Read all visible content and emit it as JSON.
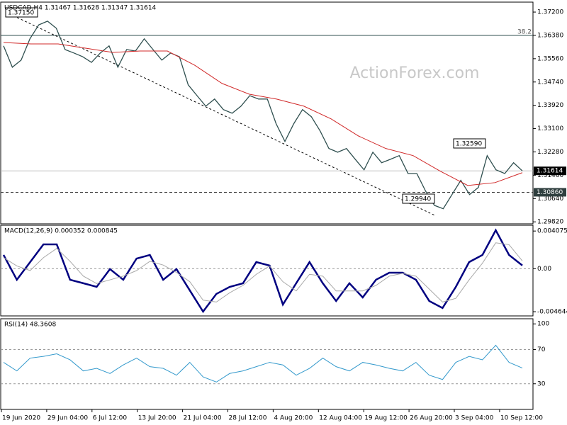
{
  "chart_data": [
    {
      "type": "line",
      "title": "USDCAD,H4 1.31467 1.31628 1.31347 1.31614",
      "watermark": "ActionForex.com",
      "series": [
        {
          "color": "#2f4f4f",
          "values": [
            1.3601,
            1.3526,
            1.3551,
            1.3626,
            1.3675,
            1.3688,
            1.3663,
            1.3588,
            1.3576,
            1.3563,
            1.3543,
            1.3576,
            1.3601,
            1.3526,
            1.3588,
            1.3583,
            1.3626,
            1.3588,
            1.3551,
            1.3576,
            1.3563,
            1.3464,
            1.3426,
            1.3389,
            1.3414,
            1.3377,
            1.3364,
            1.3389,
            1.3426,
            1.3414,
            1.3414,
            1.3327,
            1.3265,
            1.3327,
            1.3377,
            1.3352,
            1.3302,
            1.324,
            1.3227,
            1.324,
            1.3202,
            1.3165,
            1.3227,
            1.319,
            1.3202,
            1.3215,
            1.3152,
            1.3152,
            1.309,
            1.304,
            1.3028,
            1.3078,
            1.3128,
            1.3078,
            1.3103,
            1.3215,
            1.3165,
            1.3152,
            1.319,
            1.31614
          ]
        },
        {
          "color": "#d02828",
          "values": [
            1.3613,
            1.3608,
            1.3608,
            1.3593,
            1.3578,
            1.3583,
            1.3583,
            1.3533,
            1.3469,
            1.3431,
            1.3414,
            1.3389,
            1.3344,
            1.3284,
            1.324,
            1.3215,
            1.316,
            1.311,
            1.312,
            1.3155
          ]
        }
      ],
      "ylim": [
        1.2975,
        1.3755
      ],
      "yticks": [
        {
          "value": 1.372,
          "label": "1.37200"
        },
        {
          "value": 1.3638,
          "label": "1.36380"
        },
        {
          "value": 1.3556,
          "label": "1.35560"
        },
        {
          "value": 1.3474,
          "label": "1.34740"
        },
        {
          "value": 1.3392,
          "label": "1.33920"
        },
        {
          "value": 1.331,
          "label": "1.33100"
        },
        {
          "value": 1.3228,
          "label": "1.32280"
        },
        {
          "value": 1.3146,
          "label": "1.31460"
        },
        {
          "value": 1.3064,
          "label": "1.30640"
        },
        {
          "value": 1.2982,
          "label": "1.29820"
        }
      ],
      "highs_lows": [
        {
          "value": 1.3715,
          "label": "1.37150"
        },
        {
          "value": 1.3259,
          "label": "1.32590"
        },
        {
          "value": 1.2994,
          "label": "1.29940"
        }
      ],
      "current": {
        "value": 1.31614,
        "label": "1.31614"
      },
      "level": {
        "value": 1.3086,
        "label": "1.30860"
      },
      "fib_level": {
        "price": 1.3638,
        "ratio": 38.2
      },
      "trendline": {
        "from": 1.372,
        "to": 1.3003
      },
      "x_labels": [
        "19 Jun 2020",
        "29 Jun 04:00",
        "6 Jul 12:00",
        "13 Jul 20:00",
        "21 Jul 04:00",
        "28 Jul 12:00",
        "4 Aug 20:00",
        "12 Aug 04:00",
        "19 Aug 12:00",
        "26 Aug 20:00",
        "3 Sep 04:00",
        "10 Sep 12:00"
      ]
    },
    {
      "type": "line",
      "title": "MACD(12,26,9) 0.000352 0.000845",
      "series": [
        {
          "color": "#000080",
          "values": [
            0.00149,
            -0.00119,
            0.00072,
            0.00263,
            0.00263,
            -0.00119,
            -0.00157,
            -0.00196,
            -4e-05,
            -0.00119,
            0.0011,
            0.00149,
            -0.00119,
            -4e-05,
            -0.00234,
            -0.00463,
            -0.00272,
            -0.00196,
            -0.00157,
            0.00072,
            0.00034,
            -0.00387,
            -0.00157,
            0.00072,
            -0.00157,
            -0.00349,
            -0.00157,
            -0.0031,
            -0.00119,
            -0.00043,
            -0.00043,
            -0.00119,
            -0.00349,
            -0.00425,
            -0.00196,
            0.00072,
            0.00149,
            0.00416,
            0.00149,
            0.000352
          ]
        },
        {
          "color": "#a9a9a9",
          "values": [
            0.0012,
            0.0003,
            -0.0002,
            0.0012,
            0.0022,
            0.0008,
            -0.0008,
            -0.0016,
            -0.0012,
            -0.0008,
            -0.0002,
            0.0008,
            0.0004,
            -0.0004,
            -0.0014,
            -0.0034,
            -0.0036,
            -0.0026,
            -0.0018,
            -0.0006,
            0.0003,
            -0.0014,
            -0.0024,
            -0.0006,
            -0.0008,
            -0.0024,
            -0.0024,
            -0.0024,
            -0.0018,
            -0.0008,
            -0.0005,
            -0.0008,
            -0.0022,
            -0.0036,
            -0.0032,
            -0.0012,
            0.0006,
            0.0028,
            0.0026,
            0.000845
          ]
        }
      ],
      "ylim": [
        -0.0051,
        0.0047
      ],
      "yticks": [
        0.004075,
        {
          "value": 0,
          "label": "0.00"
        },
        -0.004644
      ]
    },
    {
      "type": "line",
      "title": "RSI(14) 48.3608",
      "series": [
        {
          "color": "#3399cc",
          "values": [
            55,
            45,
            60,
            62,
            65,
            58,
            45,
            48,
            42,
            52,
            60,
            50,
            48,
            40,
            55,
            38,
            32,
            42,
            45,
            50,
            55,
            52,
            40,
            48,
            60,
            50,
            45,
            55,
            52,
            48,
            45,
            55,
            40,
            35,
            55,
            62,
            58,
            75,
            55,
            48.3608
          ]
        }
      ],
      "ylim": [
        0,
        106
      ],
      "yticks": [
        100,
        70,
        30
      ],
      "levels": [
        70,
        30
      ]
    }
  ]
}
